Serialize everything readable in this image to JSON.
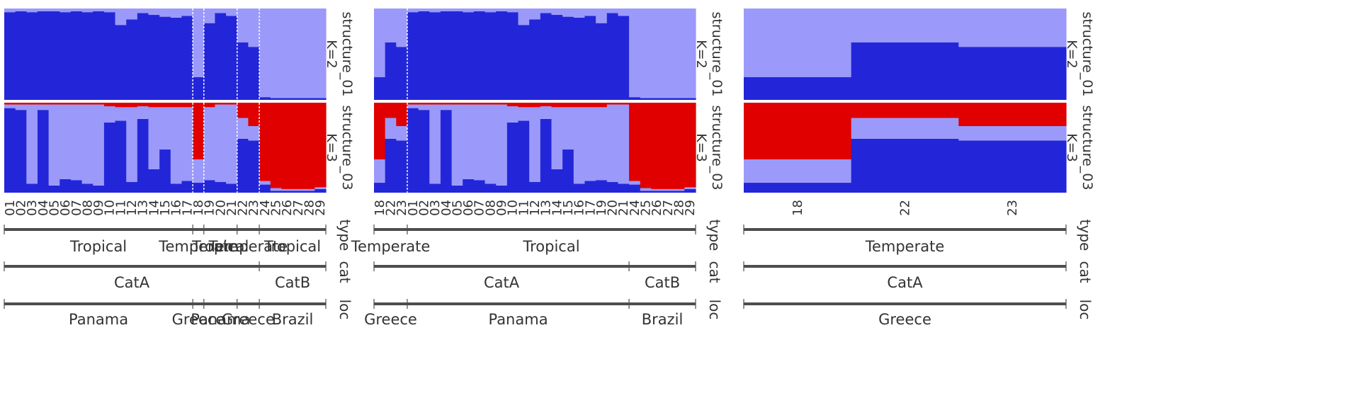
{
  "colors": {
    "cluster1": "#2326d8",
    "cluster2": "#9b9afa",
    "cluster3": "#e00000",
    "bracket": "#4d4d4d",
    "separator": "#ffffff",
    "text": "#333333"
  },
  "chart_data": [
    {
      "type": "bar",
      "stacked": true,
      "panel": "left",
      "categories": [
        "01",
        "02",
        "03",
        "04",
        "05",
        "06",
        "07",
        "08",
        "09",
        "10",
        "11",
        "12",
        "13",
        "14",
        "15",
        "16",
        "17",
        "18",
        "19",
        "20",
        "21",
        "22",
        "23",
        "24",
        "25",
        "26",
        "27",
        "28",
        "29"
      ],
      "groups": {
        "type": [
          {
            "label": "Tropical",
            "from": 0,
            "to": 17
          },
          {
            "label": "Temperate",
            "from": 17,
            "to": 18
          },
          {
            "label": "Tropical",
            "from": 18,
            "to": 21
          },
          {
            "label": "Temperate",
            "from": 21,
            "to": 23
          },
          {
            "label": "Tropical",
            "from": 23,
            "to": 29
          }
        ],
        "cat": [
          {
            "label": "CatA",
            "from": 0,
            "to": 23
          },
          {
            "label": "CatB",
            "from": 23,
            "to": 29
          }
        ],
        "loc": [
          {
            "label": "Panama",
            "from": 0,
            "to": 17
          },
          {
            "label": "Greece",
            "from": 17,
            "to": 18
          },
          {
            "label": "Panama",
            "from": 18,
            "to": 21
          },
          {
            "label": "Greece",
            "from": 21,
            "to": 23
          },
          {
            "label": "Brazil",
            "from": 23,
            "to": 29
          }
        ]
      },
      "separators_after": [
        17,
        18,
        21,
        23
      ],
      "rows": [
        {
          "name": "structure_01",
          "k_label": "K=2",
          "series": [
            {
              "values": [
                0.96,
                0.97,
                0.96,
                0.97,
                0.97,
                0.96,
                0.97,
                0.96,
                0.97,
                0.96,
                0.82,
                0.88,
                0.95,
                0.93,
                0.91,
                0.9,
                0.92,
                0.25,
                0.84,
                0.95,
                0.92,
                0.63,
                0.58,
                0.03,
                0.02,
                0.02,
                0.02,
                0.02,
                0.02
              ]
            },
            {
              "values": [
                0.04,
                0.03,
                0.04,
                0.03,
                0.03,
                0.04,
                0.03,
                0.04,
                0.03,
                0.04,
                0.18,
                0.12,
                0.05,
                0.07,
                0.09,
                0.1,
                0.08,
                0.75,
                0.16,
                0.05,
                0.08,
                0.37,
                0.42,
                0.97,
                0.98,
                0.98,
                0.98,
                0.98,
                0.98
              ]
            }
          ]
        },
        {
          "name": "structure_03",
          "k_label": "K=3",
          "series": [
            {
              "values": [
                0.94,
                0.92,
                0.1,
                0.92,
                0.08,
                0.15,
                0.14,
                0.1,
                0.08,
                0.78,
                0.8,
                0.12,
                0.82,
                0.26,
                0.48,
                0.1,
                0.13,
                0.11,
                0.14,
                0.12,
                0.1,
                0.6,
                0.58,
                0.09,
                0.02,
                0.02,
                0.02,
                0.02,
                0.04
              ]
            },
            {
              "values": [
                0.04,
                0.06,
                0.88,
                0.06,
                0.9,
                0.83,
                0.84,
                0.88,
                0.9,
                0.18,
                0.15,
                0.83,
                0.14,
                0.69,
                0.47,
                0.85,
                0.82,
                0.26,
                0.81,
                0.86,
                0.88,
                0.23,
                0.16,
                0.04,
                0.03,
                0.02,
                0.02,
                0.02,
                0.02
              ]
            },
            {
              "values": [
                0.02,
                0.02,
                0.02,
                0.02,
                0.02,
                0.02,
                0.02,
                0.02,
                0.02,
                0.04,
                0.05,
                0.05,
                0.04,
                0.05,
                0.05,
                0.05,
                0.05,
                0.63,
                0.05,
                0.02,
                0.02,
                0.17,
                0.26,
                0.87,
                0.95,
                0.96,
                0.96,
                0.96,
                0.94
              ]
            }
          ]
        }
      ],
      "bracket_labels": [
        "type",
        "cat",
        "loc"
      ]
    },
    {
      "type": "bar",
      "stacked": true,
      "panel": "middle",
      "categories": [
        "18",
        "22",
        "23",
        "01",
        "02",
        "03",
        "04",
        "05",
        "06",
        "07",
        "08",
        "09",
        "10",
        "11",
        "12",
        "13",
        "14",
        "15",
        "16",
        "17",
        "19",
        "20",
        "21",
        "24",
        "25",
        "26",
        "27",
        "28",
        "29"
      ],
      "groups": {
        "type": [
          {
            "label": "Temperate",
            "from": 0,
            "to": 3
          },
          {
            "label": "Tropical",
            "from": 3,
            "to": 29
          }
        ],
        "cat": [
          {
            "label": "CatA",
            "from": 0,
            "to": 23
          },
          {
            "label": "CatB",
            "from": 23,
            "to": 29
          }
        ],
        "loc": [
          {
            "label": "Greece",
            "from": 0,
            "to": 3
          },
          {
            "label": "Panama",
            "from": 3,
            "to": 23
          },
          {
            "label": "Brazil",
            "from": 23,
            "to": 29
          }
        ]
      },
      "separators_after": [
        3
      ],
      "rows": [
        {
          "name": "structure_01",
          "k_label": "K=2",
          "series": [
            {
              "values": [
                0.25,
                0.63,
                0.58,
                0.96,
                0.97,
                0.96,
                0.97,
                0.97,
                0.96,
                0.97,
                0.96,
                0.97,
                0.96,
                0.82,
                0.88,
                0.95,
                0.93,
                0.91,
                0.9,
                0.92,
                0.84,
                0.95,
                0.92,
                0.03,
                0.02,
                0.02,
                0.02,
                0.02,
                0.02
              ]
            },
            {
              "values": [
                0.75,
                0.37,
                0.42,
                0.04,
                0.03,
                0.04,
                0.03,
                0.03,
                0.04,
                0.03,
                0.04,
                0.03,
                0.04,
                0.18,
                0.12,
                0.05,
                0.07,
                0.09,
                0.1,
                0.08,
                0.16,
                0.05,
                0.08,
                0.97,
                0.98,
                0.98,
                0.98,
                0.98,
                0.98
              ]
            }
          ]
        },
        {
          "name": "structure_03",
          "k_label": "K=3",
          "series": [
            {
              "values": [
                0.11,
                0.6,
                0.58,
                0.94,
                0.92,
                0.1,
                0.92,
                0.08,
                0.15,
                0.14,
                0.1,
                0.08,
                0.78,
                0.8,
                0.12,
                0.82,
                0.26,
                0.48,
                0.1,
                0.13,
                0.14,
                0.12,
                0.1,
                0.09,
                0.02,
                0.02,
                0.02,
                0.02,
                0.04
              ]
            },
            {
              "values": [
                0.26,
                0.23,
                0.16,
                0.04,
                0.06,
                0.88,
                0.06,
                0.9,
                0.83,
                0.84,
                0.88,
                0.9,
                0.18,
                0.15,
                0.83,
                0.14,
                0.69,
                0.47,
                0.85,
                0.82,
                0.81,
                0.86,
                0.88,
                0.04,
                0.03,
                0.02,
                0.02,
                0.02,
                0.02
              ]
            },
            {
              "values": [
                0.63,
                0.17,
                0.26,
                0.02,
                0.02,
                0.02,
                0.02,
                0.02,
                0.02,
                0.02,
                0.02,
                0.02,
                0.04,
                0.05,
                0.05,
                0.04,
                0.05,
                0.05,
                0.05,
                0.05,
                0.05,
                0.02,
                0.02,
                0.87,
                0.95,
                0.96,
                0.96,
                0.96,
                0.94
              ]
            }
          ]
        }
      ],
      "bracket_labels": [
        "type",
        "cat",
        "loc"
      ]
    },
    {
      "type": "bar",
      "stacked": true,
      "panel": "right",
      "categories": [
        "18",
        "22",
        "23"
      ],
      "groups": {
        "type": [
          {
            "label": "Temperate",
            "from": 0,
            "to": 3
          }
        ],
        "cat": [
          {
            "label": "CatA",
            "from": 0,
            "to": 3
          }
        ],
        "loc": [
          {
            "label": "Greece",
            "from": 0,
            "to": 3
          }
        ]
      },
      "separators_after": [],
      "rows": [
        {
          "name": "structure_01",
          "k_label": "K=2",
          "series": [
            {
              "values": [
                0.25,
                0.63,
                0.58
              ]
            },
            {
              "values": [
                0.75,
                0.37,
                0.42
              ]
            }
          ]
        },
        {
          "name": "structure_03",
          "k_label": "K=3",
          "series": [
            {
              "values": [
                0.11,
                0.6,
                0.58
              ]
            },
            {
              "values": [
                0.26,
                0.23,
                0.16
              ]
            },
            {
              "values": [
                0.63,
                0.17,
                0.26
              ]
            }
          ]
        }
      ],
      "bracket_labels": [
        "type",
        "cat",
        "loc"
      ]
    }
  ]
}
